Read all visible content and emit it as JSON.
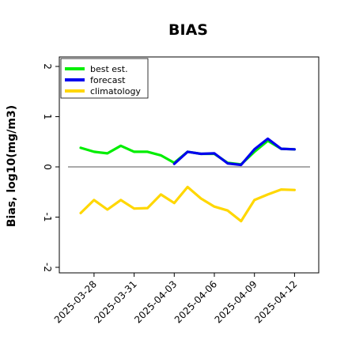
{
  "chart_data": {
    "type": "line",
    "title": "BIAS",
    "ylabel": "Bias, log10(mg/m3)",
    "xlabel": "",
    "ylim": [
      -2,
      2
    ],
    "yticks": [
      "2",
      "1",
      "0",
      "-1",
      "-2"
    ],
    "ytick_values": [
      2,
      1,
      0,
      -1,
      -2
    ],
    "xtick_labels": [
      "2025-03-28",
      "2025-03-31",
      "2025-04-03",
      "2025-04-06",
      "2025-04-09",
      "2025-04-12"
    ],
    "xtick_values": [
      "2025-03-28",
      "2025-03-31",
      "2025-04-03",
      "2025-04-06",
      "2025-04-09",
      "2025-04-12"
    ],
    "highlight_tick": "2025-04-03",
    "highlight_color": "#228b22",
    "zero_line": true,
    "grid": false,
    "legend_position": "top-left",
    "x": [
      "2025-03-27",
      "2025-03-28",
      "2025-03-29",
      "2025-03-30",
      "2025-03-31",
      "2025-04-01",
      "2025-04-02",
      "2025-04-03",
      "2025-04-04",
      "2025-04-05",
      "2025-04-06",
      "2025-04-07",
      "2025-04-08",
      "2025-04-09",
      "2025-04-10",
      "2025-04-11",
      "2025-04-12"
    ],
    "series": [
      {
        "name": "best est.",
        "color": "#00ee00",
        "values": [
          0.38,
          0.3,
          0.27,
          0.42,
          0.3,
          0.3,
          0.23,
          0.08,
          0.3,
          0.26,
          0.26,
          0.08,
          0.05,
          0.3,
          0.52,
          0.36,
          0.35
        ]
      },
      {
        "name": "forecast",
        "color": "#0000ee",
        "values": [
          null,
          null,
          null,
          null,
          null,
          null,
          null,
          0.06,
          0.3,
          0.26,
          0.27,
          0.07,
          0.04,
          0.35,
          0.56,
          0.36,
          0.35
        ]
      },
      {
        "name": "climatology",
        "color": "#ffd700",
        "values": [
          -0.92,
          -0.66,
          -0.85,
          -0.66,
          -0.83,
          -0.82,
          -0.55,
          -0.72,
          -0.4,
          -0.63,
          -0.79,
          -0.87,
          -1.08,
          -0.66,
          -0.55,
          -0.45,
          -0.46
        ]
      }
    ]
  }
}
